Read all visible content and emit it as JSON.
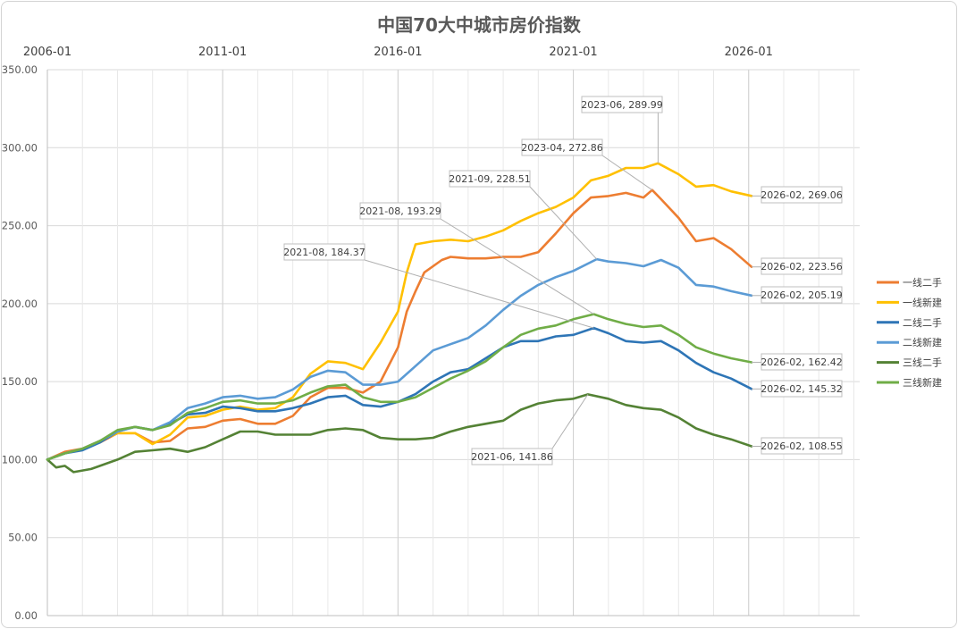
{
  "chart_data": {
    "type": "line",
    "title": "中国70大中城市房价指数",
    "xlabel": "",
    "ylabel": "",
    "x_range": [
      "2006-01",
      "2029-03"
    ],
    "x_ticks": [
      "2006-01",
      "2011-01",
      "2016-01",
      "2021-01",
      "2026-01"
    ],
    "ylim": [
      0,
      350
    ],
    "y_ticks": [
      "0.00",
      "50.00",
      "100.00",
      "150.00",
      "200.00",
      "250.00",
      "300.00",
      "350.00"
    ],
    "grid": true,
    "legend_position": "right",
    "series": [
      {
        "name": "一线二手",
        "color": "#ED7D31",
        "points": [
          [
            "2006-01",
            100
          ],
          [
            "2006-07",
            105
          ],
          [
            "2007-01",
            107
          ],
          [
            "2007-07",
            111
          ],
          [
            "2008-01",
            117
          ],
          [
            "2008-07",
            117
          ],
          [
            "2009-01",
            111
          ],
          [
            "2009-07",
            112
          ],
          [
            "2010-01",
            120
          ],
          [
            "2010-07",
            121
          ],
          [
            "2011-01",
            125
          ],
          [
            "2011-07",
            126
          ],
          [
            "2012-01",
            123
          ],
          [
            "2012-07",
            123
          ],
          [
            "2013-01",
            128
          ],
          [
            "2013-07",
            140
          ],
          [
            "2014-01",
            146
          ],
          [
            "2014-07",
            146
          ],
          [
            "2015-01",
            143
          ],
          [
            "2015-07",
            150
          ],
          [
            "2016-01",
            172
          ],
          [
            "2016-04",
            195
          ],
          [
            "2016-07",
            208
          ],
          [
            "2016-10",
            220
          ],
          [
            "2017-04",
            228
          ],
          [
            "2017-07",
            230
          ],
          [
            "2018-01",
            229
          ],
          [
            "2018-07",
            229
          ],
          [
            "2019-01",
            230
          ],
          [
            "2019-07",
            230
          ],
          [
            "2020-01",
            233
          ],
          [
            "2020-07",
            245
          ],
          [
            "2021-01",
            258
          ],
          [
            "2021-07",
            268
          ],
          [
            "2022-01",
            269
          ],
          [
            "2022-07",
            271
          ],
          [
            "2023-01",
            268
          ],
          [
            "2023-04",
            272.86
          ],
          [
            "2023-07",
            267
          ],
          [
            "2024-01",
            255
          ],
          [
            "2024-07",
            240
          ],
          [
            "2025-01",
            242
          ],
          [
            "2025-07",
            235
          ],
          [
            "2026-02",
            223.56
          ]
        ]
      },
      {
        "name": "一线新建",
        "color": "#FFC000",
        "points": [
          [
            "2006-01",
            100
          ],
          [
            "2006-07",
            104
          ],
          [
            "2007-01",
            107
          ],
          [
            "2007-07",
            112
          ],
          [
            "2008-01",
            117
          ],
          [
            "2008-07",
            117
          ],
          [
            "2009-01",
            110
          ],
          [
            "2009-07",
            116
          ],
          [
            "2010-01",
            127
          ],
          [
            "2010-07",
            128
          ],
          [
            "2011-01",
            132
          ],
          [
            "2011-07",
            134
          ],
          [
            "2012-01",
            132
          ],
          [
            "2012-07",
            133
          ],
          [
            "2013-01",
            140
          ],
          [
            "2013-07",
            155
          ],
          [
            "2014-01",
            163
          ],
          [
            "2014-07",
            162
          ],
          [
            "2015-01",
            158
          ],
          [
            "2015-07",
            175
          ],
          [
            "2016-01",
            195
          ],
          [
            "2016-04",
            220
          ],
          [
            "2016-07",
            238
          ],
          [
            "2017-01",
            240
          ],
          [
            "2017-07",
            241
          ],
          [
            "2018-01",
            240
          ],
          [
            "2018-07",
            243
          ],
          [
            "2019-01",
            247
          ],
          [
            "2019-07",
            253
          ],
          [
            "2020-01",
            258
          ],
          [
            "2020-07",
            262
          ],
          [
            "2021-01",
            268
          ],
          [
            "2021-07",
            279
          ],
          [
            "2022-01",
            282
          ],
          [
            "2022-07",
            287
          ],
          [
            "2023-01",
            287
          ],
          [
            "2023-06",
            289.99
          ],
          [
            "2024-01",
            283
          ],
          [
            "2024-07",
            275
          ],
          [
            "2025-01",
            276
          ],
          [
            "2025-07",
            272
          ],
          [
            "2026-02",
            269.06
          ]
        ]
      },
      {
        "name": "二线二手",
        "color": "#2E75B6",
        "points": [
          [
            "2006-01",
            100
          ],
          [
            "2006-07",
            104
          ],
          [
            "2007-01",
            106
          ],
          [
            "2007-07",
            111
          ],
          [
            "2008-01",
            118
          ],
          [
            "2008-07",
            121
          ],
          [
            "2009-01",
            119
          ],
          [
            "2009-07",
            123
          ],
          [
            "2010-01",
            129
          ],
          [
            "2010-07",
            130
          ],
          [
            "2011-01",
            134
          ],
          [
            "2011-07",
            133
          ],
          [
            "2012-01",
            131
          ],
          [
            "2012-07",
            131
          ],
          [
            "2013-01",
            133
          ],
          [
            "2013-07",
            136
          ],
          [
            "2014-01",
            140
          ],
          [
            "2014-07",
            141
          ],
          [
            "2015-01",
            135
          ],
          [
            "2015-07",
            134
          ],
          [
            "2016-01",
            137
          ],
          [
            "2016-07",
            142
          ],
          [
            "2017-01",
            150
          ],
          [
            "2017-07",
            156
          ],
          [
            "2018-01",
            158
          ],
          [
            "2018-07",
            165
          ],
          [
            "2019-01",
            172
          ],
          [
            "2019-07",
            176
          ],
          [
            "2020-01",
            176
          ],
          [
            "2020-07",
            179
          ],
          [
            "2021-01",
            180
          ],
          [
            "2021-08",
            184.37
          ],
          [
            "2022-01",
            181
          ],
          [
            "2022-07",
            176
          ],
          [
            "2023-01",
            175
          ],
          [
            "2023-07",
            176
          ],
          [
            "2024-01",
            170
          ],
          [
            "2024-07",
            162
          ],
          [
            "2025-01",
            156
          ],
          [
            "2025-07",
            152
          ],
          [
            "2026-02",
            145.32
          ]
        ]
      },
      {
        "name": "二线新建",
        "color": "#5B9BD5",
        "points": [
          [
            "2006-01",
            100
          ],
          [
            "2006-07",
            104
          ],
          [
            "2007-01",
            107
          ],
          [
            "2007-07",
            112
          ],
          [
            "2008-01",
            118
          ],
          [
            "2008-07",
            121
          ],
          [
            "2009-01",
            119
          ],
          [
            "2009-07",
            124
          ],
          [
            "2010-01",
            133
          ],
          [
            "2010-07",
            136
          ],
          [
            "2011-01",
            140
          ],
          [
            "2011-07",
            141
          ],
          [
            "2012-01",
            139
          ],
          [
            "2012-07",
            140
          ],
          [
            "2013-01",
            145
          ],
          [
            "2013-07",
            153
          ],
          [
            "2014-01",
            157
          ],
          [
            "2014-07",
            156
          ],
          [
            "2015-01",
            148
          ],
          [
            "2015-07",
            148
          ],
          [
            "2016-01",
            150
          ],
          [
            "2016-07",
            160
          ],
          [
            "2017-01",
            170
          ],
          [
            "2017-07",
            174
          ],
          [
            "2018-01",
            178
          ],
          [
            "2018-07",
            186
          ],
          [
            "2019-01",
            196
          ],
          [
            "2019-07",
            205
          ],
          [
            "2020-01",
            212
          ],
          [
            "2020-07",
            217
          ],
          [
            "2021-01",
            221
          ],
          [
            "2021-09",
            228.51
          ],
          [
            "2022-01",
            227
          ],
          [
            "2022-07",
            226
          ],
          [
            "2023-01",
            224
          ],
          [
            "2023-07",
            228
          ],
          [
            "2024-01",
            223
          ],
          [
            "2024-07",
            212
          ],
          [
            "2025-01",
            211
          ],
          [
            "2025-07",
            208
          ],
          [
            "2026-02",
            205.19
          ]
        ]
      },
      {
        "name": "三线二手",
        "color": "#548235",
        "points": [
          [
            "2006-01",
            100
          ],
          [
            "2006-04",
            95
          ],
          [
            "2006-07",
            96
          ],
          [
            "2006-10",
            92
          ],
          [
            "2007-04",
            94
          ],
          [
            "2007-07",
            96
          ],
          [
            "2008-01",
            100
          ],
          [
            "2008-07",
            105
          ],
          [
            "2009-01",
            106
          ],
          [
            "2009-07",
            107
          ],
          [
            "2010-01",
            105
          ],
          [
            "2010-07",
            108
          ],
          [
            "2011-01",
            113
          ],
          [
            "2011-07",
            118
          ],
          [
            "2012-01",
            118
          ],
          [
            "2012-07",
            116
          ],
          [
            "2013-01",
            116
          ],
          [
            "2013-07",
            116
          ],
          [
            "2014-01",
            119
          ],
          [
            "2014-07",
            120
          ],
          [
            "2015-01",
            119
          ],
          [
            "2015-07",
            114
          ],
          [
            "2016-01",
            113
          ],
          [
            "2016-07",
            113
          ],
          [
            "2017-01",
            114
          ],
          [
            "2017-07",
            118
          ],
          [
            "2018-01",
            121
          ],
          [
            "2018-07",
            123
          ],
          [
            "2019-01",
            125
          ],
          [
            "2019-07",
            132
          ],
          [
            "2020-01",
            136
          ],
          [
            "2020-07",
            138
          ],
          [
            "2021-01",
            139
          ],
          [
            "2021-06",
            141.86
          ],
          [
            "2022-01",
            139
          ],
          [
            "2022-07",
            135
          ],
          [
            "2023-01",
            133
          ],
          [
            "2023-07",
            132
          ],
          [
            "2024-01",
            127
          ],
          [
            "2024-07",
            120
          ],
          [
            "2025-01",
            116
          ],
          [
            "2025-07",
            113
          ],
          [
            "2026-02",
            108.55
          ]
        ]
      },
      {
        "name": "三线新建",
        "color": "#70AD47",
        "points": [
          [
            "2006-01",
            100
          ],
          [
            "2006-07",
            104
          ],
          [
            "2007-01",
            107
          ],
          [
            "2007-07",
            112
          ],
          [
            "2008-01",
            119
          ],
          [
            "2008-07",
            121
          ],
          [
            "2009-01",
            119
          ],
          [
            "2009-07",
            122
          ],
          [
            "2010-01",
            130
          ],
          [
            "2010-07",
            133
          ],
          [
            "2011-01",
            137
          ],
          [
            "2011-07",
            138
          ],
          [
            "2012-01",
            136
          ],
          [
            "2012-07",
            136
          ],
          [
            "2013-01",
            138
          ],
          [
            "2013-07",
            143
          ],
          [
            "2014-01",
            147
          ],
          [
            "2014-07",
            148
          ],
          [
            "2015-01",
            140
          ],
          [
            "2015-07",
            137
          ],
          [
            "2016-01",
            137
          ],
          [
            "2016-07",
            140
          ],
          [
            "2017-01",
            146
          ],
          [
            "2017-07",
            152
          ],
          [
            "2018-01",
            157
          ],
          [
            "2018-07",
            163
          ],
          [
            "2019-01",
            172
          ],
          [
            "2019-07",
            180
          ],
          [
            "2020-01",
            184
          ],
          [
            "2020-07",
            186
          ],
          [
            "2021-01",
            190
          ],
          [
            "2021-08",
            193.29
          ],
          [
            "2022-01",
            190
          ],
          [
            "2022-07",
            187
          ],
          [
            "2023-01",
            185
          ],
          [
            "2023-07",
            186
          ],
          [
            "2024-01",
            180
          ],
          [
            "2024-07",
            172
          ],
          [
            "2025-01",
            168
          ],
          [
            "2025-07",
            165
          ],
          [
            "2026-02",
            162.42
          ]
        ]
      }
    ],
    "annotations": [
      {
        "label": "2023-06, 289.99",
        "x": "2023-06",
        "y": 289.99
      },
      {
        "label": "2023-04, 272.86",
        "x": "2023-04",
        "y": 272.86
      },
      {
        "label": "2021-09, 228.51",
        "x": "2021-09",
        "y": 228.51
      },
      {
        "label": "2021-08, 193.29",
        "x": "2021-08",
        "y": 193.29
      },
      {
        "label": "2021-08, 184.37",
        "x": "2021-08",
        "y": 184.37
      },
      {
        "label": "2021-06, 141.86",
        "x": "2021-06",
        "y": 141.86
      },
      {
        "label": "2026-02, 269.06",
        "x": "2026-02",
        "y": 269.06
      },
      {
        "label": "2026-02, 223.56",
        "x": "2026-02",
        "y": 223.56
      },
      {
        "label": "2026-02, 205.19",
        "x": "2026-02",
        "y": 205.19
      },
      {
        "label": "2026-02, 162.42",
        "x": "2026-02",
        "y": 162.42
      },
      {
        "label": "2026-02, 145.32",
        "x": "2026-02",
        "y": 145.32
      },
      {
        "label": "2026-02, 108.55",
        "x": "2026-02",
        "y": 108.55
      }
    ]
  }
}
